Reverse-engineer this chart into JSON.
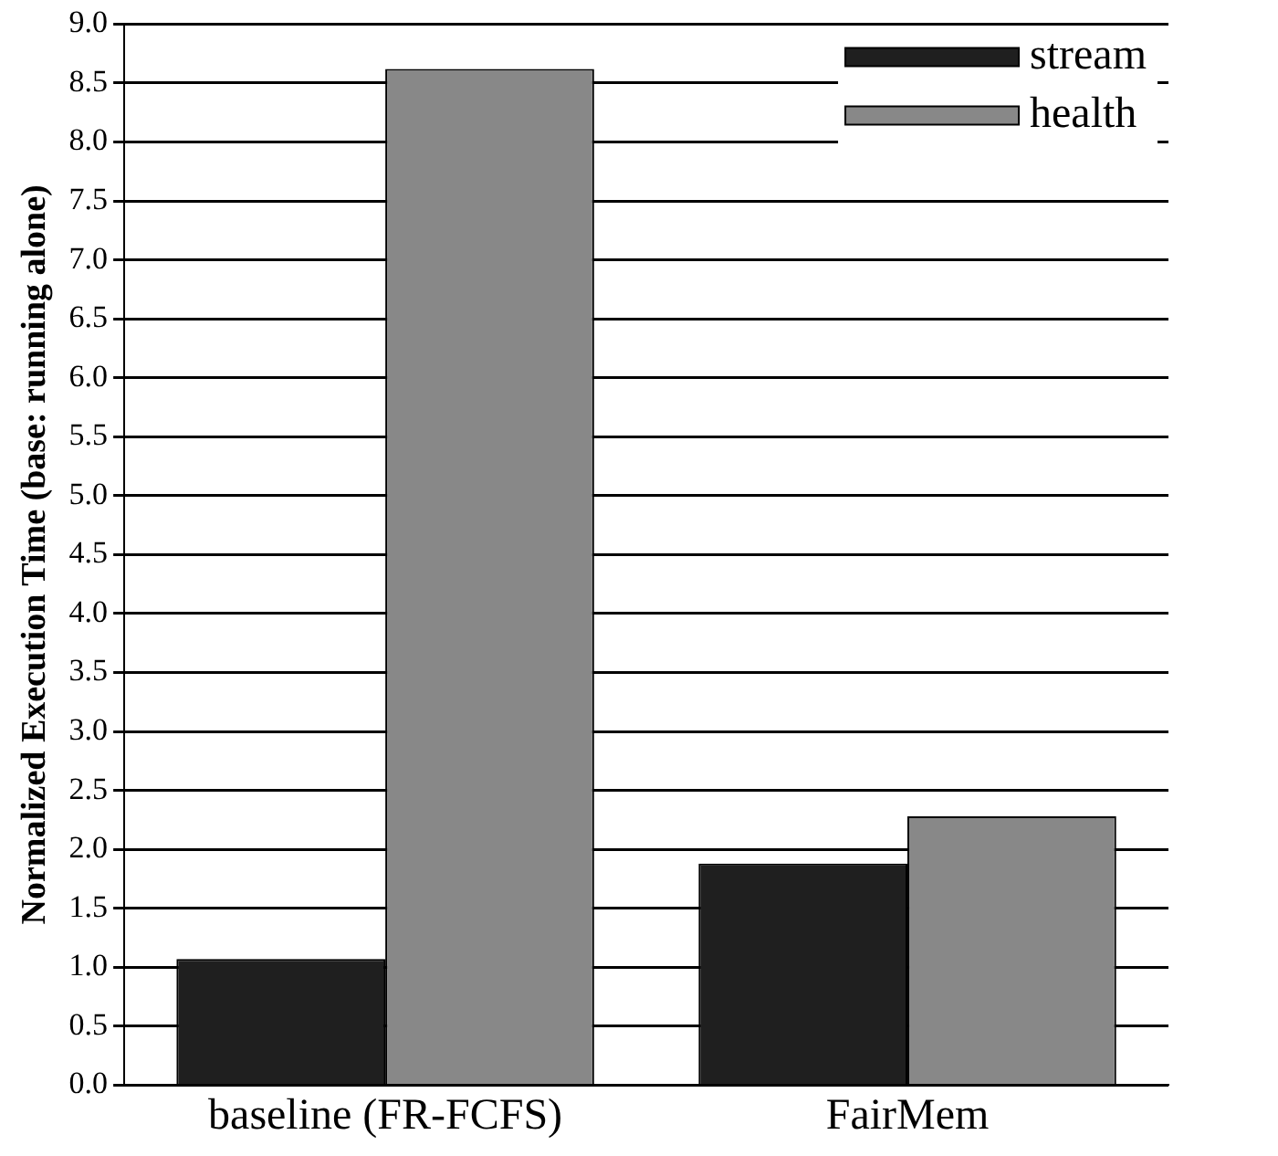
{
  "chart_data": {
    "type": "bar",
    "ylabel": "Normalized Execution Time (base: running alone)",
    "categories": [
      "baseline (FR-FCFS)",
      "FairMem"
    ],
    "series": [
      {
        "name": "stream",
        "color": "#1f1f1f",
        "values": [
          1.07,
          1.88
        ]
      },
      {
        "name": "health",
        "color": "#888888",
        "values": [
          8.62,
          2.28
        ]
      }
    ],
    "ylim": [
      0,
      9
    ],
    "yticks": [
      {
        "value": 0,
        "label": "0.0"
      },
      {
        "value": 0.5,
        "label": "0.5"
      },
      {
        "value": 1,
        "label": "1.0"
      },
      {
        "value": 1.5,
        "label": "1.5"
      },
      {
        "value": 2,
        "label": "2.0"
      },
      {
        "value": 2.5,
        "label": "2.5"
      },
      {
        "value": 3,
        "label": "3.0"
      },
      {
        "value": 3.5,
        "label": "3.5"
      },
      {
        "value": 4,
        "label": "4.0"
      },
      {
        "value": 4.5,
        "label": "4.5"
      },
      {
        "value": 5,
        "label": "5.0"
      },
      {
        "value": 5.5,
        "label": "5.5"
      },
      {
        "value": 6,
        "label": "6.0"
      },
      {
        "value": 6.5,
        "label": "6.5"
      },
      {
        "value": 7,
        "label": "7.0"
      },
      {
        "value": 7.5,
        "label": "7.5"
      },
      {
        "value": 8,
        "label": "8.0"
      },
      {
        "value": 8.5,
        "label": "8.5"
      },
      {
        "value": 9,
        "label": "9.0"
      }
    ],
    "grid": "y",
    "legend": "top right"
  }
}
